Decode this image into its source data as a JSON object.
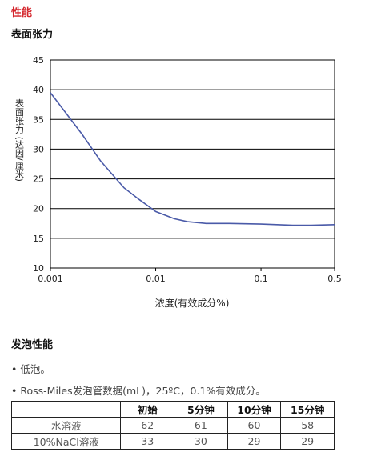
{
  "header": {
    "section": "性能",
    "subtitle": "表面张力"
  },
  "chart_data": {
    "type": "line",
    "y_label": "表面张力 (达因/厘米)",
    "x_label": "浓度(有效成分%)",
    "x": [
      0.001,
      0.002,
      0.003,
      0.005,
      0.007,
      0.01,
      0.015,
      0.02,
      0.03,
      0.05,
      0.1,
      0.2,
      0.3,
      0.5
    ],
    "series": [
      {
        "color": "#4a5aa8",
        "values": [
          39.5,
          32.5,
          28,
          23.5,
          21.5,
          19.5,
          18.3,
          17.8,
          17.5,
          17.5,
          17.4,
          17.2,
          17.2,
          17.3
        ]
      }
    ],
    "log_x": true,
    "xlim": [
      0.001,
      0.5
    ],
    "xticks": [
      0.001,
      0.01,
      0.1,
      0.5
    ],
    "ylim": [
      10,
      45
    ],
    "yticks": [
      10,
      15,
      20,
      25,
      30,
      35,
      40,
      45
    ],
    "grid": true
  },
  "foam": {
    "title": "发泡性能",
    "bullets": [
      "低泡。",
      "Ross-Miles发泡管数据(mL)，25ºC，0.1%有效成分。"
    ],
    "table": {
      "columns": [
        "初始",
        "5分钟",
        "10分钟",
        "15分钟"
      ],
      "rows": [
        [
          "水溶液",
          62,
          61,
          60,
          58
        ],
        [
          "10%NaCl溶液",
          33,
          30,
          29,
          29
        ]
      ]
    }
  }
}
